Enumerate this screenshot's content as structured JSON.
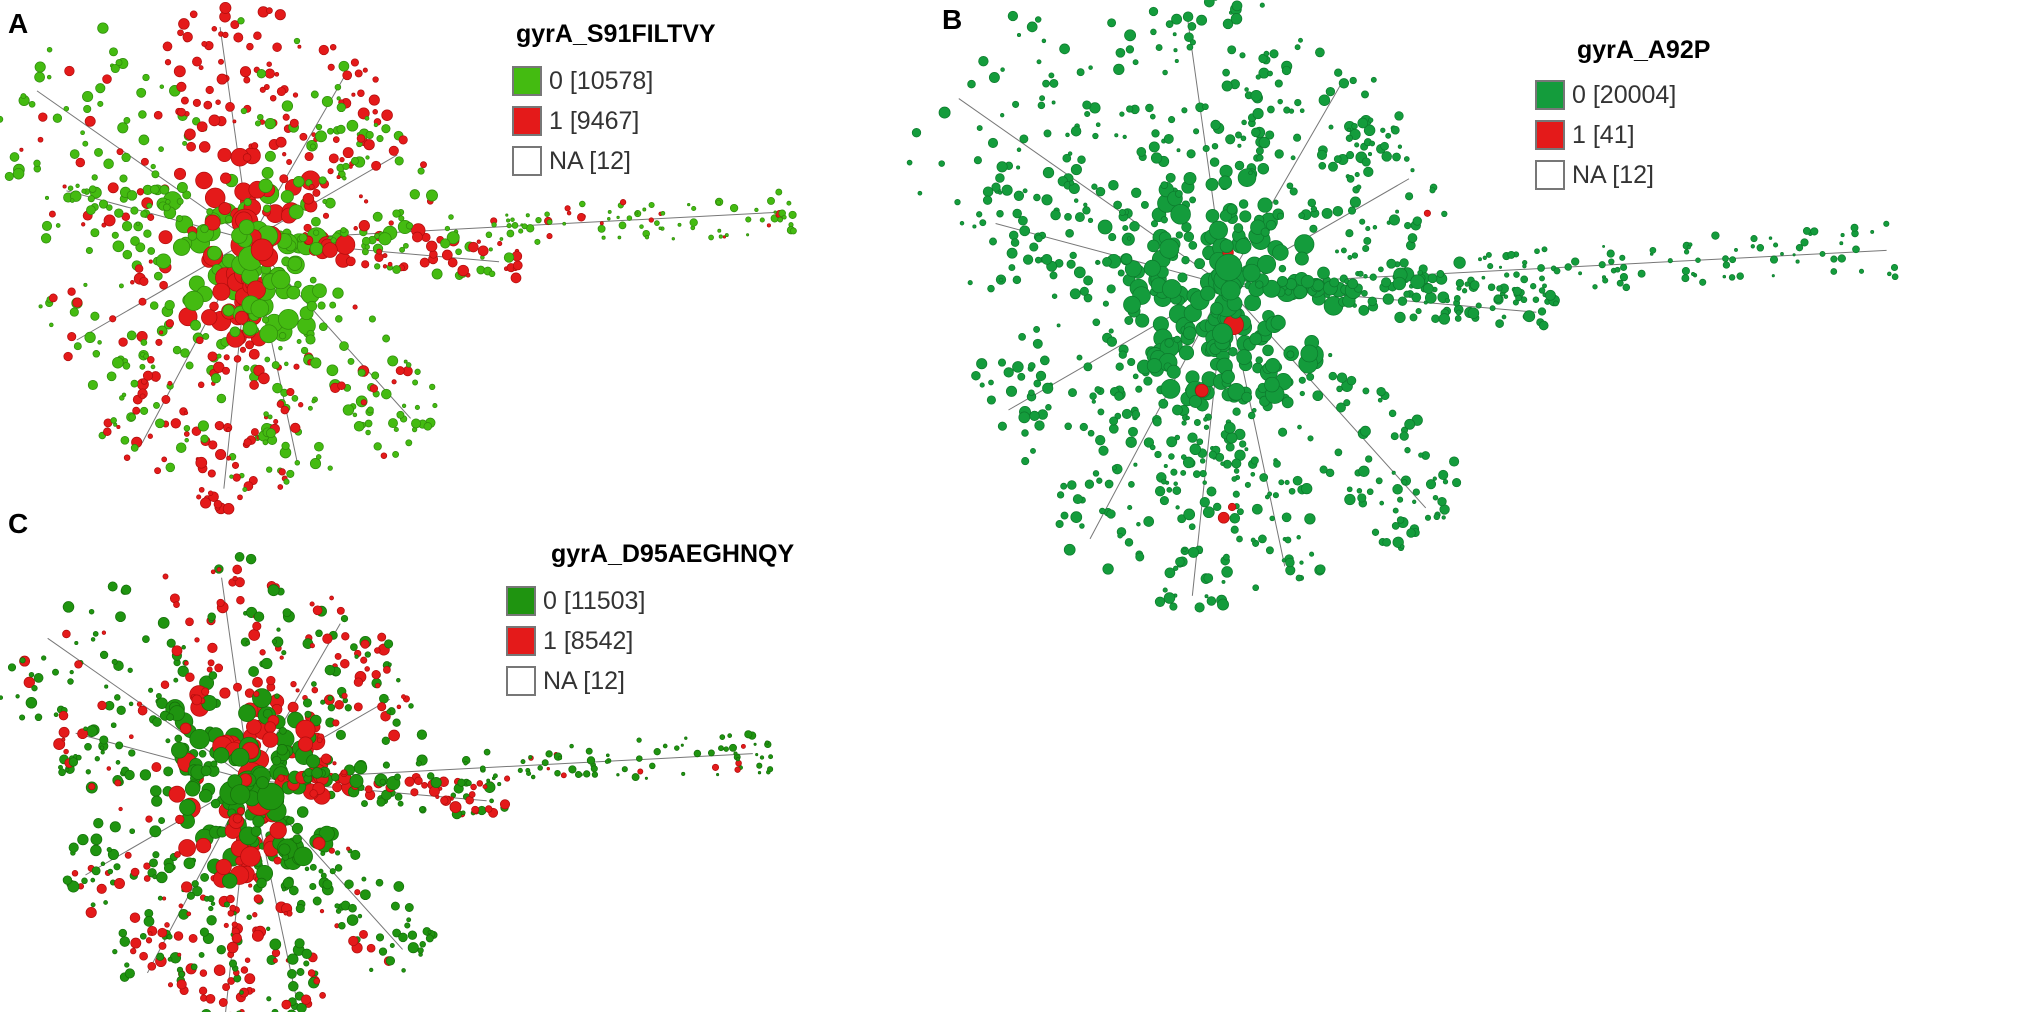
{
  "panels": [
    {
      "letter": "A",
      "title": "gyrA_S91FILTVY",
      "legend": [
        {
          "label": "0 [10578]",
          "color": "#44bb11",
          "count": 10578
        },
        {
          "label": "1 [9467]",
          "color": "#e41a1a",
          "count": 9467
        },
        {
          "label": "NA [12]",
          "color": "#ffffff",
          "count": 12
        }
      ]
    },
    {
      "letter": "B",
      "title": "gyrA_A92P",
      "legend": [
        {
          "label": "0 [20004]",
          "color": "#149c3c",
          "count": 20004
        },
        {
          "label": "1 [41]",
          "color": "#e41a1a",
          "count": 41
        },
        {
          "label": "NA [12]",
          "color": "#ffffff",
          "count": 12
        }
      ]
    },
    {
      "letter": "C",
      "title": "gyrA_D95AEGHNQY",
      "legend": [
        {
          "label": "0 [11503]",
          "color": "#1f9410",
          "count": 11503
        },
        {
          "label": "1 [8542]",
          "color": "#e41a1a",
          "count": 8542
        },
        {
          "label": "NA [12]",
          "color": "#ffffff",
          "count": 12
        }
      ]
    }
  ]
}
